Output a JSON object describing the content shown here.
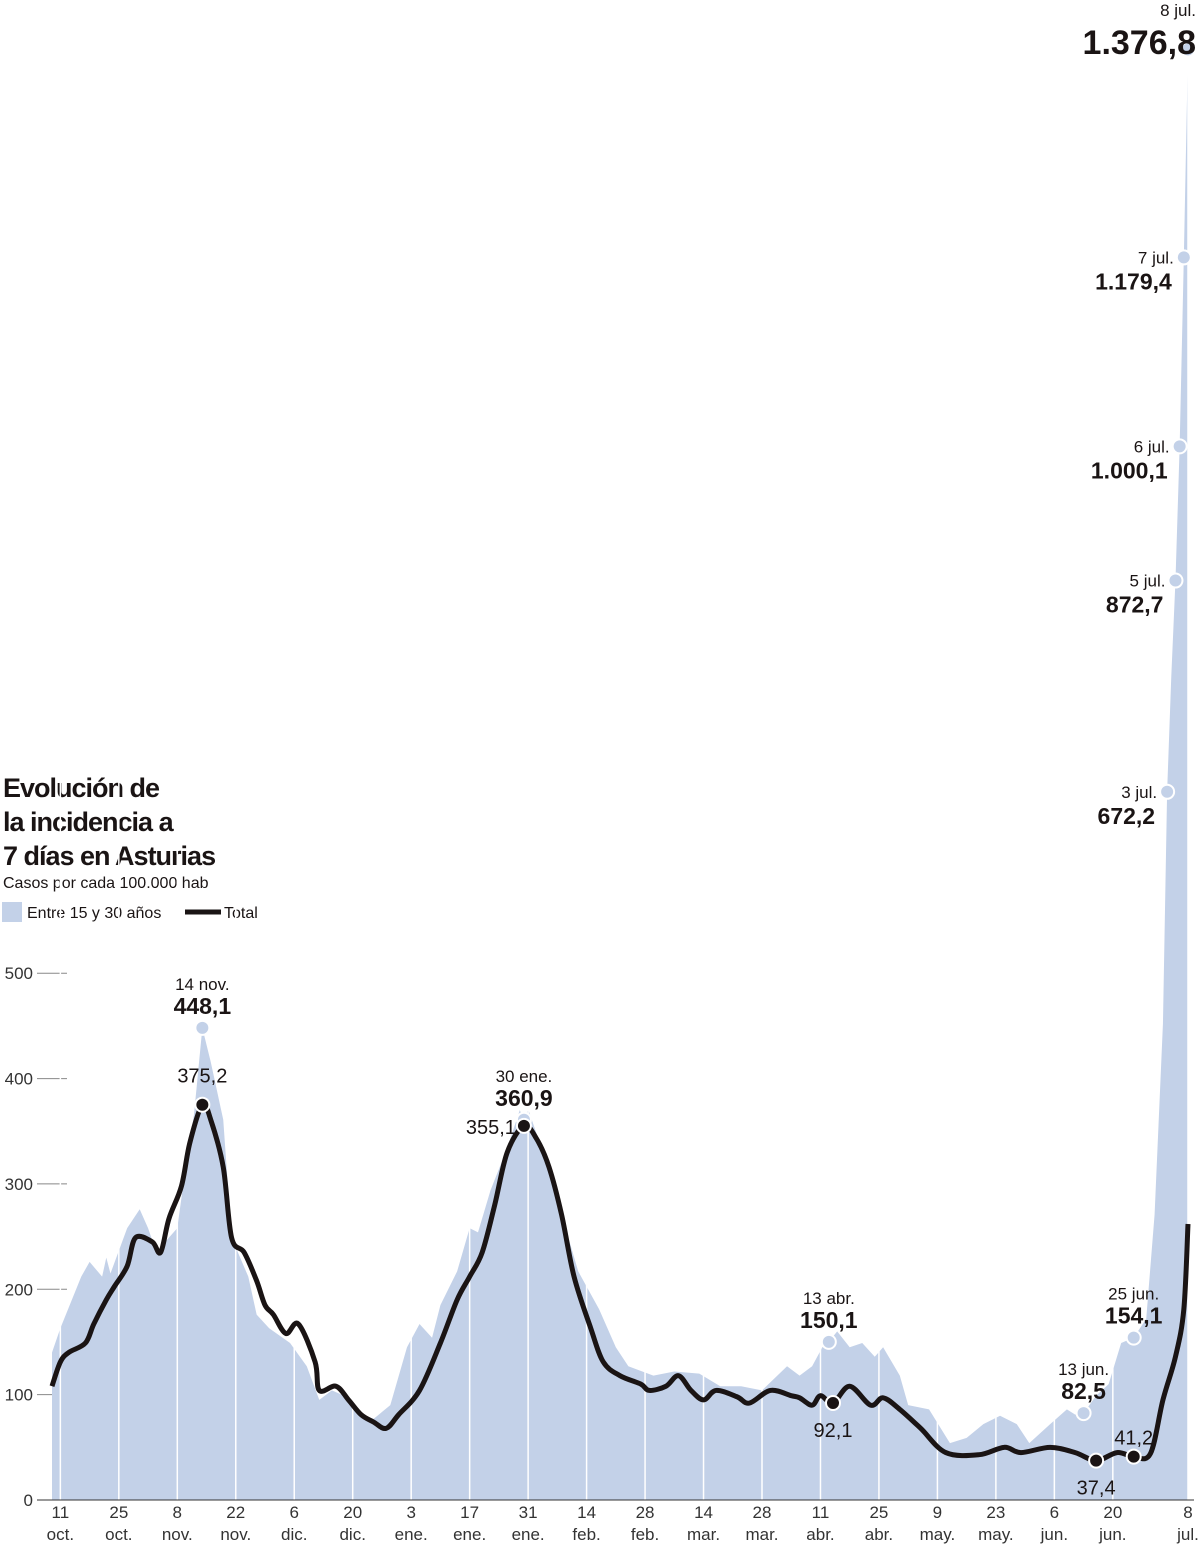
{
  "chart_data": {
    "type": "area-line",
    "title": "Evolución de la incidencia a 7 días en Asturias",
    "subtitle": "Casos por cada 100.000 hab",
    "xlim": [
      -2,
      270
    ],
    "ylim": [
      0,
      1400
    ],
    "yticks": [
      0,
      100,
      200,
      300,
      400,
      500
    ],
    "xticks": [
      {
        "value": 0,
        "label": "11 oct."
      },
      {
        "value": 14,
        "label": "25 oct."
      },
      {
        "value": 28,
        "label": "8 nov."
      },
      {
        "value": 42,
        "label": "22 nov."
      },
      {
        "value": 56,
        "label": "6 dic."
      },
      {
        "value": 70,
        "label": "20 dic."
      },
      {
        "value": 84,
        "label": "3 ene."
      },
      {
        "value": 98,
        "label": "17 ene."
      },
      {
        "value": 112,
        "label": "31 ene."
      },
      {
        "value": 126,
        "label": "14 feb."
      },
      {
        "value": 140,
        "label": "28 feb."
      },
      {
        "value": 154,
        "label": "14 mar."
      },
      {
        "value": 168,
        "label": "28 mar."
      },
      {
        "value": 182,
        "label": "11 abr."
      },
      {
        "value": 196,
        "label": "25 abr."
      },
      {
        "value": 210,
        "label": "9 may."
      },
      {
        "value": 224,
        "label": "23 may."
      },
      {
        "value": 238,
        "label": "6 jun."
      },
      {
        "value": 252,
        "label": "20 jun."
      },
      {
        "value": 270,
        "label": "8 jul."
      }
    ],
    "series": [
      {
        "name": "Entre 15 y 30 años",
        "kind": "area",
        "color": "#c3d1e8",
        "x": [
          -2,
          0,
          5,
          7,
          10,
          11,
          12,
          16,
          19,
          21,
          23,
          26,
          28,
          30,
          32,
          34,
          36,
          39,
          41,
          45,
          47,
          50,
          55,
          59,
          62,
          65,
          68,
          72,
          75,
          79,
          83,
          86,
          89,
          91,
          95,
          98,
          100,
          103,
          107,
          110,
          111,
          112,
          116,
          120,
          124,
          129,
          133,
          136,
          142,
          147,
          153,
          158,
          163,
          168,
          174,
          177,
          180,
          183,
          184,
          186,
          189,
          192,
          195,
          197,
          201,
          203,
          208,
          213,
          217,
          221,
          225,
          229,
          232,
          237,
          241,
          243,
          245,
          248,
          251,
          254,
          257,
          260,
          262,
          264,
          265,
          266,
          267,
          268,
          269,
          270
        ],
        "values": [
          140,
          163,
          212,
          226,
          212,
          230,
          215,
          258,
          276,
          258,
          235,
          249,
          258,
          316,
          366,
          448.1,
          416,
          361,
          249,
          212,
          176,
          163,
          149,
          127,
          95,
          104,
          99,
          81,
          77,
          90,
          145,
          167,
          154,
          185,
          217,
          258,
          254,
          294,
          334,
          370,
          360.9,
          371,
          325,
          271,
          217,
          181,
          145,
          127,
          118,
          122,
          120,
          108,
          108,
          104,
          127,
          118,
          127,
          149,
          150.1,
          160,
          145,
          149,
          136,
          145,
          118,
          90,
          86,
          54,
          59,
          72,
          80,
          72,
          54,
          72,
          86,
          81,
          82.5,
          99,
          110,
          149,
          154.1,
          172,
          271,
          452,
          672.2,
          782,
          872.7,
          1000.1,
          1179.4,
          1376.8
        ],
        "annotations": [
          {
            "x": 34,
            "date": "14 nov.",
            "label": "448,1"
          },
          {
            "x": 111,
            "date": "30 ene.",
            "label": "360,9"
          },
          {
            "x": 184,
            "date": "13 abr.",
            "label": "150,1"
          },
          {
            "x": 245,
            "date": "13 jun.",
            "label": "82,5"
          },
          {
            "x": 257,
            "date": "25 jun.",
            "label": "154,1"
          },
          {
            "x": 265,
            "date": "3 jul.",
            "label": "672,2"
          },
          {
            "x": 267,
            "date": "5 jul.",
            "label": "872,7"
          },
          {
            "x": 268,
            "date": "6 jul.",
            "label": "1.000,1"
          },
          {
            "x": 269,
            "date": "7 jul.",
            "label": "1.179,4"
          },
          {
            "x": 270,
            "date": "8 jul.",
            "label": "1.376,8"
          }
        ]
      },
      {
        "name": "Total",
        "kind": "line",
        "color": "#1a1414",
        "x": [
          -2,
          0,
          2,
          6,
          8,
          11,
          13,
          16,
          18,
          22,
          24,
          26,
          29,
          31,
          34,
          36,
          39,
          41,
          44,
          47,
          49,
          51,
          54,
          57,
          61,
          62,
          66,
          69,
          72,
          75,
          78,
          81,
          86,
          91,
          95,
          98,
          101,
          104,
          107,
          111,
          114,
          117,
          120,
          123,
          127,
          130,
          134,
          139,
          141,
          145,
          148,
          151,
          154,
          157,
          162,
          165,
          170,
          175,
          177,
          180,
          182,
          185,
          189,
          194,
          197,
          201,
          206,
          212,
          220,
          226,
          230,
          237,
          243,
          248,
          253,
          257,
          261,
          264,
          267,
          269,
          270
        ],
        "values": [
          108,
          131,
          140,
          149,
          167,
          190,
          203,
          222,
          249,
          245,
          235,
          267,
          298,
          339,
          375.2,
          361,
          316,
          249,
          235,
          208,
          185,
          176,
          158,
          167,
          131,
          104,
          108,
          95,
          81,
          74,
          68,
          81,
          104,
          149,
          190,
          212,
          235,
          280,
          330,
          355.1,
          343,
          316,
          271,
          212,
          163,
          131,
          118,
          110,
          104,
          108,
          118,
          104,
          95,
          104,
          98,
          92,
          104,
          99,
          97,
          90,
          99,
          92.1,
          108,
          90,
          97,
          86,
          68,
          45,
          43,
          50,
          45,
          50,
          45,
          37.4,
          45,
          41.2,
          44,
          95,
          136,
          181,
          262
        ],
        "annotations": [
          {
            "x": 34,
            "label": "375,2"
          },
          {
            "x": 111,
            "label": "355,1"
          },
          {
            "x": 185,
            "label": "92,1"
          },
          {
            "x": 248,
            "label": "37,4"
          },
          {
            "x": 257,
            "label": "41,2"
          }
        ]
      }
    ]
  }
}
